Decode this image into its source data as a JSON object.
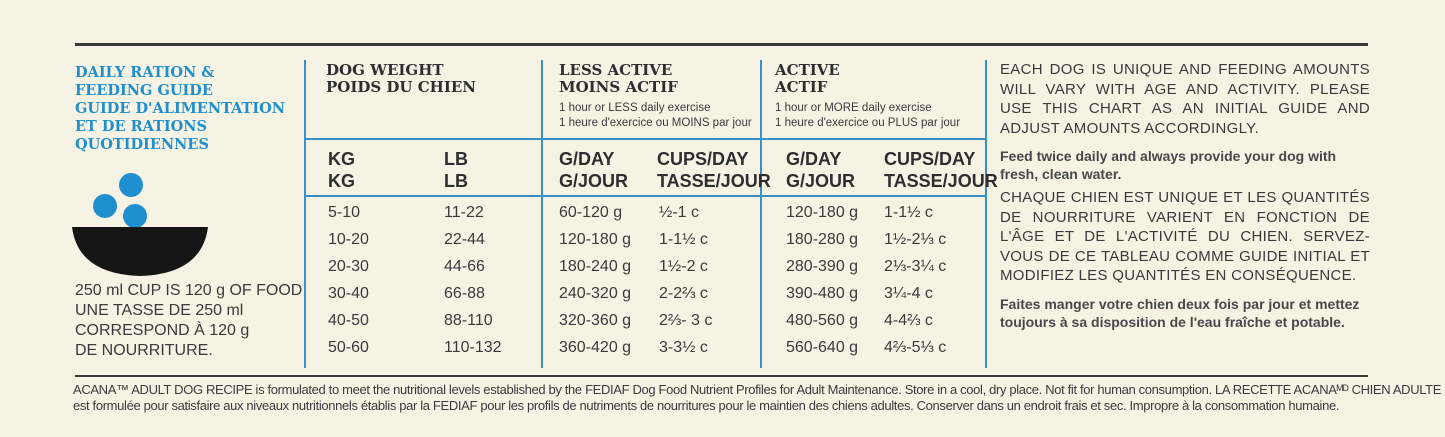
{
  "guide": {
    "title_lines": [
      "DAILY RATION &",
      "FEEDING GUIDE",
      "GUIDE D'ALIMENTATION",
      "ET DE RATIONS",
      "QUOTIDIENNES"
    ],
    "cup_note": [
      "250 ml CUP IS 120 g OF FOOD",
      "UNE TASSE DE 250 ml",
      "CORRESPOND À 120 g",
      "DE NOURRITURE."
    ],
    "colors": {
      "accent": "#1f8fcf",
      "bowl": "#161616",
      "rule": "#3a8fc9"
    }
  },
  "weight_col": {
    "line1": "DOG WEIGHT",
    "line2": "POIDS DU CHIEN",
    "kg": [
      "KG",
      "KG"
    ],
    "lb": [
      "LB",
      "LB"
    ]
  },
  "less_active": {
    "line1": "LESS ACTIVE",
    "line2": "MOINS ACTIF",
    "note1": "1 hour or LESS daily exercise",
    "note2": "1 heure d'exercice ou MOINS par jour",
    "gday": [
      "G/DAY",
      "G/JOUR"
    ],
    "cups": [
      "CUPS/DAY",
      "TASSE/JOUR"
    ]
  },
  "active": {
    "line1": "ACTIVE",
    "line2": "ACTIF",
    "note1": "1 hour or MORE daily exercise",
    "note2": "1 heure d'exercice ou PLUS par jour",
    "gday": [
      "G/DAY",
      "G/JOUR"
    ],
    "cups": [
      "CUPS/DAY",
      "TASSE/JOUR"
    ]
  },
  "rows": [
    {
      "kg": "5-10",
      "lb": "11-22",
      "less_g": "60-120 g",
      "less_c": "½-1 c",
      "act_g": "120-180 g",
      "act_c": "1-1½ c"
    },
    {
      "kg": "10-20",
      "lb": "22-44",
      "less_g": "120-180 g",
      "less_c": "1-1½ c",
      "act_g": "180-280 g",
      "act_c": "1½-2⅓ c"
    },
    {
      "kg": "20-30",
      "lb": "44-66",
      "less_g": "180-240 g",
      "less_c": "1½-2 c",
      "act_g": "280-390 g",
      "act_c": "2⅓-3¼ c"
    },
    {
      "kg": "30-40",
      "lb": "66-88",
      "less_g": "240-320 g",
      "less_c": "2-2⅔ c",
      "act_g": "390-480 g",
      "act_c": "3¼-4 c"
    },
    {
      "kg": "40-50",
      "lb": "88-110",
      "less_g": "320-360 g",
      "less_c": "2⅔- 3 c",
      "act_g": "480-560 g",
      "act_c": "4-4⅔ c"
    },
    {
      "kg": "50-60",
      "lb": "110-132",
      "less_g": "360-420 g",
      "less_c": "3-3½ c",
      "act_g": "560-640 g",
      "act_c": "4⅔-5⅓ c"
    }
  ],
  "info": {
    "en_caps": "EACH DOG IS UNIQUE AND FEEDING AMOUNTS WILL VARY WITH AGE AND ACTIVITY. PLEASE USE THIS CHART AS AN INITIAL GUIDE AND ADJUST AMOUNTS ACCORDINGLY.",
    "en_small": "Feed twice daily and always provide your dog with fresh, clean water.",
    "fr_caps": "CHAQUE CHIEN EST UNIQUE ET LES QUANTITÉS DE NOURRITURE VARIENT EN FONCTION DE L'ÂGE ET DE L'ACTIVITÉ DU CHIEN. SERVEZ-VOUS DE CE TABLEAU COMME GUIDE INITIAL ET MODIFIEZ LES QUANTITÉS EN CONSÉQUENCE.",
    "fr_small": "Faites manger votre chien deux fois par jour et mettez toujours à sa disposition de l'eau fraîche et potable."
  },
  "footer": {
    "line1": "ACANA™ ADULT DOG RECIPE is formulated to meet the nutritional levels established by the FEDIAF Dog Food Nutrient Profiles for Adult Maintenance. Store in a cool, dry place. Not fit for human consumption. LA RECETTE ACANAᴹᴰ CHIEN ADULTE",
    "line2": "est formulée pour satisfaire aux niveaux nutritionnels établis par la FEDIAF pour les profils de nutriments de nourritures pour le maintien des chiens adultes. Conserver dans un endroit frais et sec. Impropre à la consommation humaine."
  }
}
